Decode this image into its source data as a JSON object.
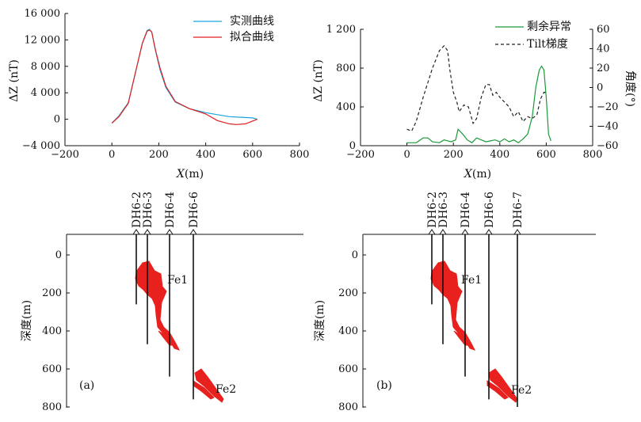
{
  "chart_data": [
    {
      "panel": "top-left",
      "type": "line",
      "xlabel_var": "X",
      "xlabel_unit": "(m)",
      "ylabel": "ΔZ (nT)",
      "xlim": [
        -200,
        800
      ],
      "ylim": [
        -4000,
        16000
      ],
      "xticks": [
        -200,
        0,
        200,
        400,
        600,
        800
      ],
      "yticks": [
        -4000,
        0,
        4000,
        8000,
        12000,
        16000
      ],
      "xtick_labels": [
        "−200",
        "0",
        "200",
        "400",
        "600",
        "800"
      ],
      "ytick_labels": [
        "−4 000",
        "0",
        "4 000",
        "8 000",
        "12 000",
        "16 000"
      ],
      "legend_position": "top-right",
      "series": [
        {
          "name": "实测曲线",
          "color": "#1aa3e0",
          "x": [
            0,
            30,
            70,
            100,
            130,
            150,
            160,
            170,
            185,
            205,
            230,
            270,
            330,
            400,
            450,
            500,
            550,
            600,
            620
          ],
          "y": [
            -600,
            500,
            2500,
            7000,
            11500,
            13400,
            13600,
            13200,
            10500,
            7500,
            4800,
            2600,
            1600,
            1000,
            700,
            400,
            300,
            200,
            0
          ]
        },
        {
          "name": "拟合曲线",
          "color": "#e01e1e",
          "x": [
            0,
            30,
            70,
            100,
            130,
            150,
            160,
            170,
            185,
            205,
            230,
            270,
            330,
            400,
            450,
            500,
            530,
            570,
            620
          ],
          "y": [
            -600,
            400,
            2400,
            7000,
            11500,
            13300,
            13500,
            13200,
            10600,
            7800,
            5000,
            2700,
            1600,
            800,
            -200,
            -700,
            -800,
            -700,
            0
          ]
        }
      ]
    },
    {
      "panel": "top-right",
      "type": "line",
      "xlabel_var": "X",
      "xlabel_unit": "(m)",
      "ylabel": "ΔZ (nT)",
      "ylabel_right": "角度(°)",
      "xlim": [
        -200,
        800
      ],
      "ylim": [
        0,
        1200
      ],
      "ylim_right": [
        -60,
        60
      ],
      "xticks": [
        -200,
        0,
        200,
        400,
        600,
        800
      ],
      "yticks": [
        0,
        400,
        800,
        1200
      ],
      "yticks_right": [
        -60,
        -40,
        -20,
        0,
        20,
        40,
        60
      ],
      "xtick_labels": [
        "−200",
        "0",
        "200",
        "400",
        "600",
        "800"
      ],
      "ytick_labels": [
        "0",
        "400",
        "800",
        "1 200"
      ],
      "ytick_right_labels": [
        "−60",
        "−40",
        "−20",
        "0",
        "20",
        "40",
        "60"
      ],
      "legend_position": "top-right",
      "series": [
        {
          "name": "剩余异常",
          "axis": "left",
          "color": "#1a9a3a",
          "x": [
            0,
            40,
            70,
            90,
            110,
            140,
            160,
            190,
            210,
            220,
            240,
            260,
            280,
            300,
            320,
            340,
            360,
            380,
            400,
            420,
            440,
            460,
            480,
            500,
            520,
            540,
            555,
            570,
            580,
            590,
            600,
            610,
            620
          ],
          "y": [
            30,
            30,
            80,
            80,
            40,
            30,
            60,
            40,
            60,
            170,
            120,
            60,
            30,
            80,
            60,
            40,
            50,
            60,
            40,
            70,
            40,
            60,
            30,
            70,
            120,
            300,
            600,
            780,
            820,
            780,
            500,
            120,
            50
          ]
        },
        {
          "name": "Tilt梯度",
          "axis": "right",
          "color": "#222222",
          "style": "dashed",
          "x": [
            0,
            20,
            40,
            70,
            110,
            140,
            160,
            175,
            185,
            200,
            215,
            225,
            245,
            265,
            285,
            300,
            320,
            340,
            355,
            370,
            385,
            400,
            420,
            440,
            460,
            480,
            500,
            520,
            540,
            560,
            575,
            590,
            600
          ],
          "y": [
            -43,
            -45,
            -35,
            -10,
            20,
            38,
            43,
            38,
            18,
            -5,
            -15,
            -25,
            -18,
            -20,
            -37,
            -32,
            -10,
            3,
            3,
            -8,
            -5,
            -10,
            -15,
            -20,
            -30,
            -25,
            -35,
            -30,
            -32,
            -28,
            -12,
            -5,
            -5
          ]
        }
      ]
    }
  ],
  "sections": [
    {
      "panel": "bottom-left",
      "tag": "(a)",
      "ylabel": "深度(m)",
      "depth_ticks": [
        0,
        200,
        400,
        600,
        800
      ],
      "holes": [
        {
          "name": "DH6-2",
          "x": 150,
          "top": -110,
          "bottom": 260
        },
        {
          "name": "DH6-3",
          "x": 220,
          "top": -110,
          "bottom": 470
        },
        {
          "name": "DH6-4",
          "x": 360,
          "top": -110,
          "bottom": 640
        },
        {
          "name": "DH6-6",
          "x": 510,
          "top": -110,
          "bottom": 760
        }
      ],
      "orebodies": [
        "Fe1",
        "Fe2"
      ]
    },
    {
      "panel": "bottom-right",
      "tag": "(b)",
      "ylabel": "深度(m)",
      "depth_ticks": [
        0,
        200,
        400,
        600,
        800
      ],
      "holes": [
        {
          "name": "DH6-2",
          "x": 150,
          "top": -110,
          "bottom": 260
        },
        {
          "name": "DH6-3",
          "x": 220,
          "top": -110,
          "bottom": 470
        },
        {
          "name": "DH6-4",
          "x": 360,
          "top": -110,
          "bottom": 640
        },
        {
          "name": "DH6-6",
          "x": 510,
          "top": -110,
          "bottom": 760
        },
        {
          "name": "DH6-7",
          "x": 690,
          "top": -110,
          "bottom": 800
        }
      ],
      "orebodies": [
        "Fe1",
        "Fe2"
      ]
    }
  ]
}
